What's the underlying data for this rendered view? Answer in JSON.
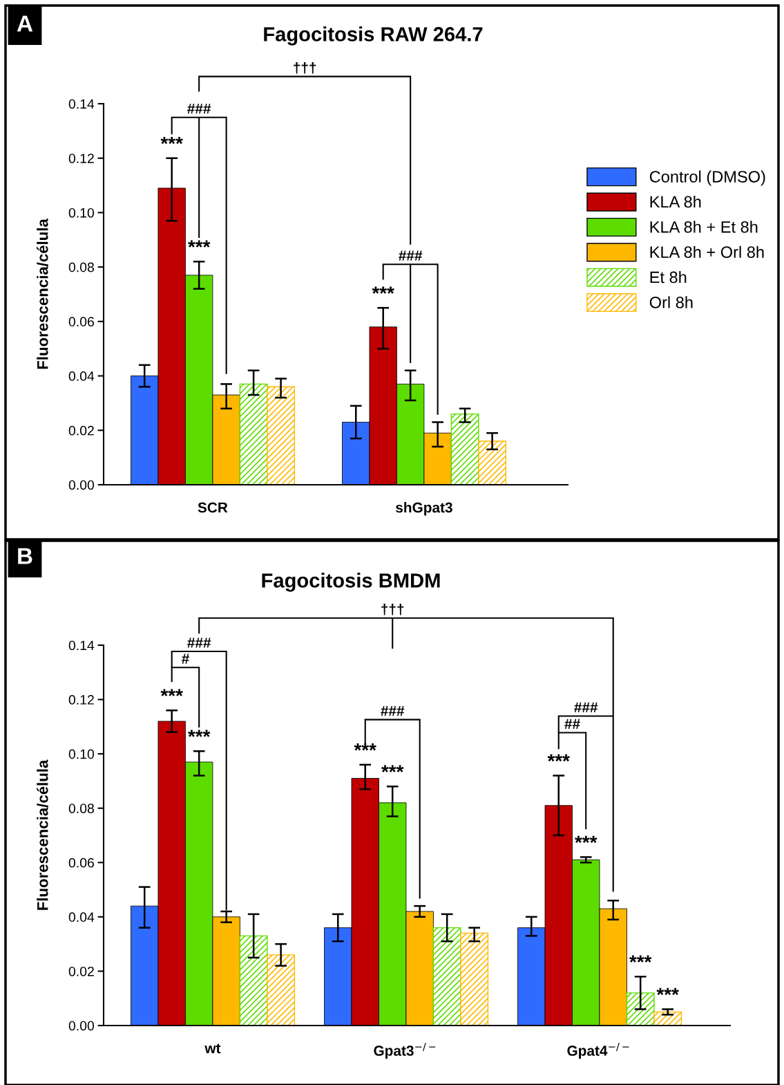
{
  "chart_data": [
    {
      "type": "bar",
      "title": "Fagocitosis RAW 264.7",
      "ylabel": "Fluorescencia/célula",
      "categories": [
        "SCR",
        "shGpat3"
      ],
      "legend": "right",
      "grid": false,
      "ylim": [
        0,
        0.14
      ],
      "yticks": [
        {
          "value": 0,
          "label": "0.00"
        },
        {
          "value": 0.02,
          "label": "0.02"
        },
        {
          "value": 0.04,
          "label": "0.04"
        },
        {
          "value": 0.06,
          "label": "0.06"
        },
        {
          "value": 0.08,
          "label": "0.08"
        },
        {
          "value": 0.1,
          "label": "0.10"
        },
        {
          "value": 0.12,
          "label": "0.12"
        },
        {
          "value": 0.14,
          "label": "0.14"
        }
      ],
      "series": [
        {
          "name": "Control (DMSO)",
          "color": "#2f6bff",
          "values": [
            0.04,
            0.023
          ],
          "errors": [
            [
              0.036,
              0.044
            ],
            [
              0.017,
              0.029
            ]
          ]
        },
        {
          "name": "KLA 8h",
          "color": "#c00000",
          "values": [
            0.109,
            0.058
          ],
          "errors": [
            [
              0.097,
              0.12
            ],
            [
              0.05,
              0.065
            ]
          ]
        },
        {
          "name": "KLA 8h + Et 8h",
          "color": "#5ddc00",
          "values": [
            0.077,
            0.037
          ],
          "errors": [
            [
              0.072,
              0.082
            ],
            [
              0.031,
              0.042
            ]
          ]
        },
        {
          "name": "KLA 8h + Orl 8h",
          "color": "#ffb800",
          "values": [
            0.033,
            0.019
          ],
          "errors": [
            [
              0.028,
              0.037
            ],
            [
              0.014,
              0.023
            ]
          ]
        },
        {
          "name": "Et 8h",
          "color": "#5ddc00",
          "values": [
            0.037,
            0.026
          ],
          "errors": [
            [
              0.033,
              0.042
            ],
            [
              0.023,
              0.028
            ]
          ]
        },
        {
          "name": "Orl 8h",
          "color": "#ffb800",
          "values": [
            0.036,
            0.016
          ],
          "errors": [
            [
              0.032,
              0.039
            ],
            [
              0.013,
              0.019
            ]
          ]
        }
      ],
      "annotations": [
        "A",
        "***",
        "***",
        "***",
        "###",
        "†††",
        "###"
      ]
    },
    {
      "type": "bar",
      "title": "Fagocitosis BMDM",
      "ylabel": "Fluorescencia/célula",
      "categories": [
        "wt",
        "Gpat3$^{−/−}$",
        "Gpat4$^{−/−}$"
      ],
      "grid": false,
      "ylim": [
        0,
        0.14
      ],
      "yticks": [
        {
          "value": 0,
          "label": "0.00"
        },
        {
          "value": 0.02,
          "label": "0.02"
        },
        {
          "value": 0.04,
          "label": "0.04"
        },
        {
          "value": 0.06,
          "label": "0.06"
        },
        {
          "value": 0.08,
          "label": "0.08"
        },
        {
          "value": 0.1,
          "label": "0.10"
        },
        {
          "value": 0.12,
          "label": "0.12"
        },
        {
          "value": 0.14,
          "label": "0.14"
        }
      ],
      "series": [
        {
          "color": "#2f6bff",
          "values": [
            0.044,
            0.036,
            0.036
          ],
          "errors": [
            [
              0.036,
              0.051
            ],
            [
              0.031,
              0.041
            ],
            [
              0.033,
              0.04
            ]
          ]
        },
        {
          "color": "#c00000",
          "values": [
            0.112,
            0.091,
            0.081
          ],
          "errors": [
            [
              0.108,
              0.116
            ],
            [
              0.087,
              0.096
            ],
            [
              0.07,
              0.092
            ]
          ]
        },
        {
          "color": "#5ddc00",
          "values": [
            0.097,
            0.082,
            0.061
          ],
          "errors": [
            [
              0.092,
              0.101
            ],
            [
              0.077,
              0.088
            ],
            [
              0.06,
              0.062
            ]
          ]
        },
        {
          "color": "#ffb800",
          "values": [
            0.04,
            0.042,
            0.043
          ],
          "errors": [
            [
              0.038,
              0.042
            ],
            [
              0.04,
              0.044
            ],
            [
              0.039,
              0.046
            ]
          ]
        },
        {
          "color": "#5ddc00",
          "values": [
            0.033,
            0.036,
            0.012
          ],
          "errors": [
            [
              0.025,
              0.041
            ],
            [
              0.031,
              0.041
            ],
            [
              0.006,
              0.018
            ]
          ]
        },
        {
          "color": "#ffb800",
          "values": [
            0.026,
            0.034,
            0.005
          ],
          "errors": [
            [
              0.022,
              0.03
            ],
            [
              0.031,
              0.036
            ],
            [
              0.004,
              0.006
            ]
          ]
        }
      ],
      "annotations": [
        "B",
        "***",
        "***",
        "***",
        "***",
        "***",
        "***",
        "***",
        "***",
        "†††",
        "###",
        "#",
        "###",
        "###",
        "##"
      ]
    }
  ]
}
